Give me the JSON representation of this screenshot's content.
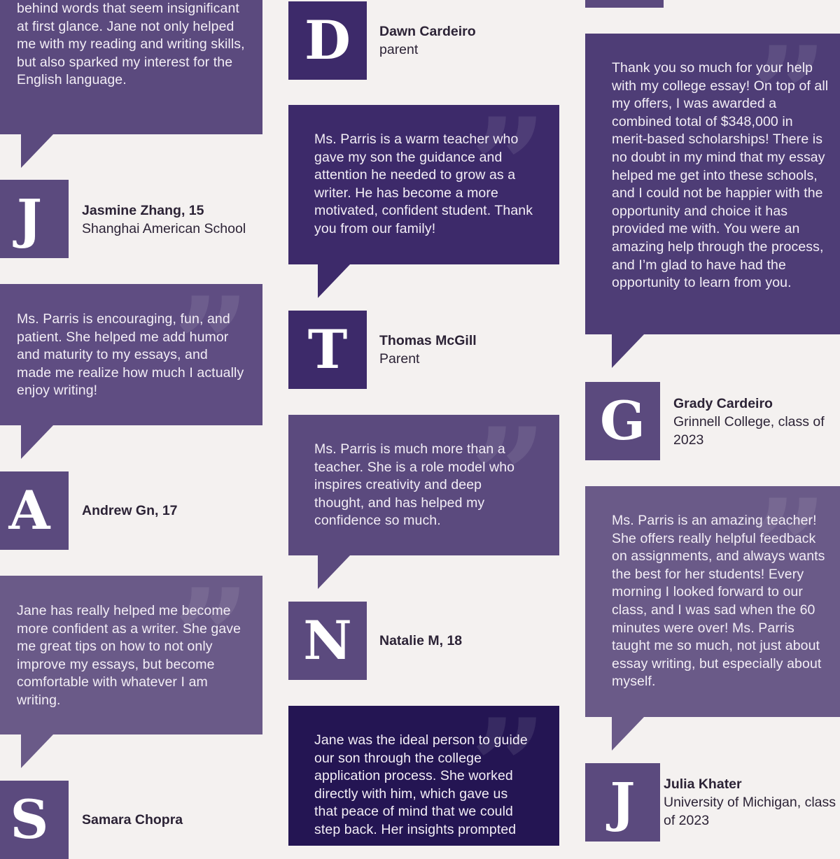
{
  "colors": {
    "background": "#f4f1f0",
    "purple_mid": "#5b4a7e",
    "purple_dark": "#3d2a6a",
    "purple_light": "#6a5a88",
    "purple_deep": "#241553",
    "text_dark": "#2c2336"
  },
  "testimonials": {
    "jane_first": {
      "quote": "behind words that seem insignificant at first glance. Jane not only helped me with my reading and writing skills, but also sparked my interest for the English language."
    },
    "jasmine": {
      "initial": "J",
      "name": "Jasmine Zhang, 15",
      "affiliation": "Shanghai American School"
    },
    "andrew": {
      "quote": "Ms. Parris is encouraging, fun, and patient. She helped me add humor and maturity to my essays, and made me realize how much I actually enjoy writing!",
      "initial": "A",
      "name": "Andrew Gn, 17"
    },
    "samara": {
      "quote": "Jane has really helped me become more confident as a writer. She gave me great tips on how to not only improve my essays, but become comfortable with whatever I am writing.",
      "initial": "S",
      "name": "Samara Chopra"
    },
    "dawn": {
      "initial": "D",
      "name": "Dawn Cardeiro",
      "affiliation": "parent"
    },
    "thomas": {
      "quote": "Ms. Parris is a warm teacher who gave my son the guidance and attention he needed to grow as a writer. He has become a more motivated, confident student. Thank you from our family!",
      "initial": "T",
      "name": "Thomas McGill",
      "affiliation": "Parent"
    },
    "natalie": {
      "quote": "Ms. Parris is much more than a teacher. She is a role model who inspires creativity and deep thought, and has helped my confidence so much.",
      "initial": "N",
      "name": "Natalie M, 18"
    },
    "last_mid": {
      "quote": "Jane was the ideal person to guide our son through the college application process. She worked directly with him, which gave us that peace of mind that we could step back. Her insights prompted"
    },
    "grady": {
      "quote": "Thank you so much for your help with my college essay! On top of all my offers, I was awarded a combined total of $348,000 in merit-based scholarships! There is no doubt in my mind that my essay helped me get into these schools, and I could not be happier with the opportunity and choice it has provided me with. You were an amazing help through the process, and I’m glad to have had the opportunity to learn from you.",
      "initial": "G",
      "name": "Grady Cardeiro",
      "affiliation": "Grinnell College, class of 2023"
    },
    "julia": {
      "quote": "Ms. Parris is an amazing teacher! She offers really helpful feedback on assignments, and always wants the best for her students! Every morning I looked forward to our class, and I was sad when the 60 minutes were over! Ms. Parris taught me so much, not just about essay writing, but especially about myself.",
      "initial": "J",
      "name": "Julia Khater",
      "affiliation": "University of Michigan, class of 2023"
    }
  }
}
